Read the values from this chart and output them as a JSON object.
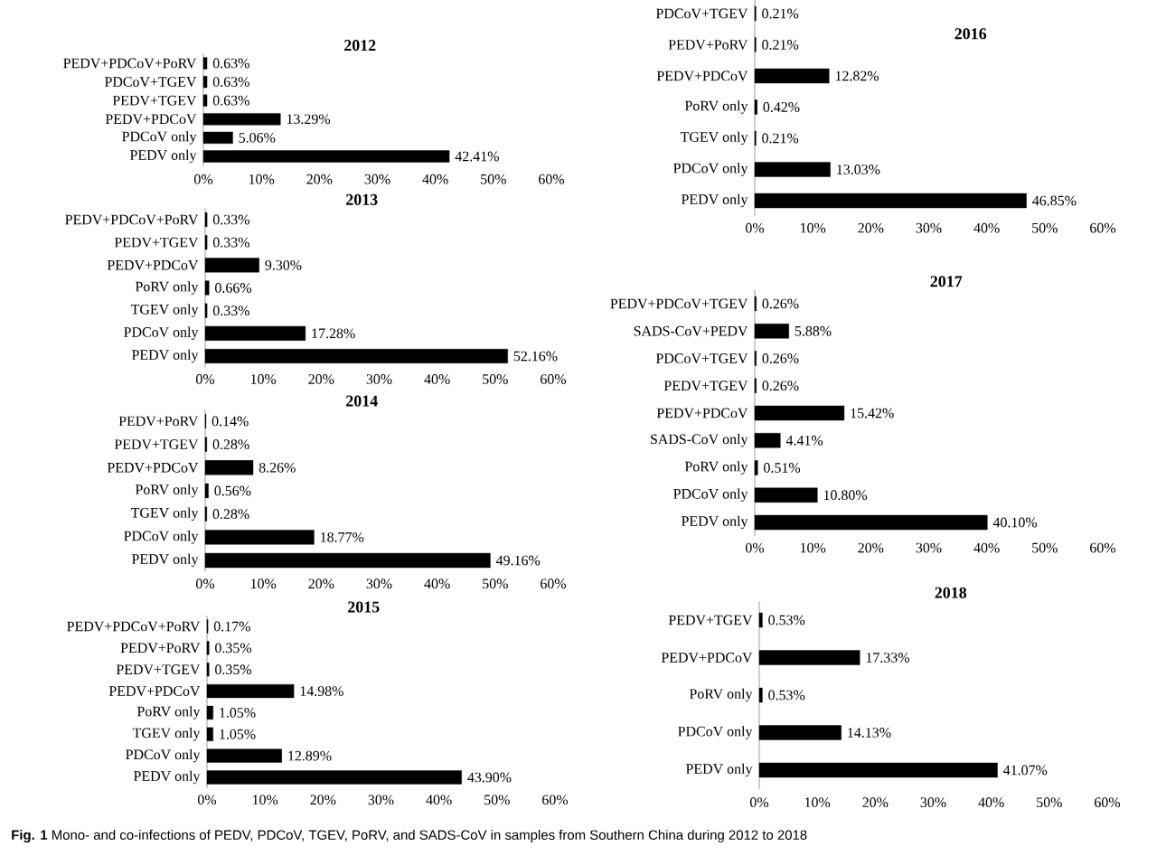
{
  "chart_data": [
    {
      "type": "bar",
      "orientation": "horizontal",
      "title": "2012",
      "color": "#000000",
      "categories": [
        "PEDV+PDCoV+PoRV",
        "PDCoV+TGEV",
        "PEDV+TGEV",
        "PEDV+PDCoV",
        "PDCoV only",
        "PEDV only"
      ],
      "values": [
        0.63,
        0.63,
        0.63,
        13.29,
        5.06,
        42.41
      ],
      "value_labels": [
        "0.63%",
        "0.63%",
        "0.63%",
        "13.29%",
        "5.06%",
        "42.41%"
      ],
      "xlim": [
        0,
        60
      ],
      "xticks": [
        {
          "value": 0,
          "label": "0%"
        },
        {
          "value": 10,
          "label": "10%"
        },
        {
          "value": 20,
          "label": "20%"
        },
        {
          "value": 30,
          "label": "30%"
        },
        {
          "value": 40,
          "label": "40%"
        },
        {
          "value": 50,
          "label": "50%"
        },
        {
          "value": 60,
          "label": "60%"
        }
      ],
      "annotations": [
        "**Fig. 1** Mono- and co-infections of PEDV, PDCoV, TGEV, PoRV, and SADS-CoV in samples from Southern China during 2012 to 2018"
      ]
    },
    {
      "type": "bar",
      "orientation": "horizontal",
      "title": "2013",
      "color": "#000000",
      "categories": [
        "PEDV+PDCoV+PoRV",
        "PEDV+TGEV",
        "PEDV+PDCoV",
        "PoRV only",
        "TGEV only",
        "PDCoV only",
        "PEDV only"
      ],
      "values": [
        0.33,
        0.33,
        9.3,
        0.66,
        0.33,
        17.28,
        52.16
      ],
      "value_labels": [
        "0.33%",
        "0.33%",
        "9.30%",
        "0.66%",
        "0.33%",
        "17.28%",
        "52.16%"
      ],
      "xlim": [
        0,
        60
      ],
      "xticks": [
        {
          "value": 0,
          "label": "0%"
        },
        {
          "value": 10,
          "label": "10%"
        },
        {
          "value": 20,
          "label": "20%"
        },
        {
          "value": 30,
          "label": "30%"
        },
        {
          "value": 40,
          "label": "40%"
        },
        {
          "value": 50,
          "label": "50%"
        },
        {
          "value": 60,
          "label": "60%"
        }
      ]
    },
    {
      "type": "bar",
      "orientation": "horizontal",
      "title": "2014",
      "color": "#000000",
      "categories": [
        "PEDV+PoRV",
        "PEDV+TGEV",
        "PEDV+PDCoV",
        "PoRV only",
        "TGEV only",
        "PDCoV only",
        "PEDV only"
      ],
      "values": [
        0.14,
        0.28,
        8.26,
        0.56,
        0.28,
        18.77,
        49.16
      ],
      "value_labels": [
        "0.14%",
        "0.28%",
        "8.26%",
        "0.56%",
        "0.28%",
        "18.77%",
        "49.16%"
      ],
      "xlim": [
        0,
        60
      ],
      "xticks": [
        {
          "value": 0,
          "label": "0%"
        },
        {
          "value": 10,
          "label": "10%"
        },
        {
          "value": 20,
          "label": "20%"
        },
        {
          "value": 30,
          "label": "30%"
        },
        {
          "value": 40,
          "label": "40%"
        },
        {
          "value": 50,
          "label": "50%"
        },
        {
          "value": 60,
          "label": "60%"
        }
      ]
    },
    {
      "type": "bar",
      "orientation": "horizontal",
      "title": "2015",
      "color": "#000000",
      "categories": [
        "PEDV+PDCoV+PoRV",
        "PEDV+PoRV",
        "PEDV+TGEV",
        "PEDV+PDCoV",
        "PoRV only",
        "TGEV only",
        "PDCoV only",
        "PEDV only"
      ],
      "values": [
        0.17,
        0.35,
        0.35,
        14.98,
        1.05,
        1.05,
        12.89,
        43.9
      ],
      "value_labels": [
        "0.17%",
        "0.35%",
        "0.35%",
        "14.98%",
        "1.05%",
        "1.05%",
        "12.89%",
        "43.90%"
      ],
      "xlim": [
        0,
        60
      ],
      "xticks": [
        {
          "value": 0,
          "label": "0%"
        },
        {
          "value": 10,
          "label": "10%"
        },
        {
          "value": 20,
          "label": "20%"
        },
        {
          "value": 30,
          "label": "30%"
        },
        {
          "value": 40,
          "label": "40%"
        },
        {
          "value": 50,
          "label": "50%"
        },
        {
          "value": 60,
          "label": "60%"
        }
      ]
    },
    {
      "type": "bar",
      "orientation": "horizontal",
      "title": "2016",
      "color": "#000000",
      "categories": [
        "PDCoV+TGEV",
        "PEDV+PoRV",
        "PEDV+PDCoV",
        "PoRV only",
        "TGEV only",
        "PDCoV only",
        "PEDV only"
      ],
      "values": [
        0.21,
        0.21,
        12.82,
        0.42,
        0.21,
        13.03,
        46.85
      ],
      "value_labels": [
        "0.21%",
        "0.21%",
        "12.82%",
        "0.42%",
        "0.21%",
        "13.03%",
        "46.85%"
      ],
      "xlim": [
        0,
        60
      ],
      "xticks": [
        {
          "value": 0,
          "label": "0%"
        },
        {
          "value": 10,
          "label": "10%"
        },
        {
          "value": 20,
          "label": "20%"
        },
        {
          "value": 30,
          "label": "30%"
        },
        {
          "value": 40,
          "label": "40%"
        },
        {
          "value": 50,
          "label": "50%"
        },
        {
          "value": 60,
          "label": "60%"
        }
      ]
    },
    {
      "type": "bar",
      "orientation": "horizontal",
      "title": "2017",
      "color": "#000000",
      "categories": [
        "PEDV+PDCoV+TGEV",
        "SADS-CoV+PEDV",
        "PDCoV+TGEV",
        "PEDV+TGEV",
        "PEDV+PDCoV",
        "SADS-CoV only",
        "PoRV only",
        "PDCoV only",
        "PEDV only"
      ],
      "values": [
        0.26,
        5.88,
        0.26,
        0.26,
        15.42,
        4.41,
        0.51,
        10.8,
        40.1
      ],
      "value_labels": [
        "0.26%",
        "5.88%",
        "0.26%",
        "0.26%",
        "15.42%",
        "4.41%",
        "0.51%",
        "10.80%",
        "40.10%"
      ],
      "xlim": [
        0,
        60
      ],
      "xticks": [
        {
          "value": 0,
          "label": "0%"
        },
        {
          "value": 10,
          "label": "10%"
        },
        {
          "value": 20,
          "label": "20%"
        },
        {
          "value": 30,
          "label": "30%"
        },
        {
          "value": 40,
          "label": "40%"
        },
        {
          "value": 50,
          "label": "50%"
        },
        {
          "value": 60,
          "label": "60%"
        }
      ]
    },
    {
      "type": "bar",
      "orientation": "horizontal",
      "title": "2018",
      "color": "#000000",
      "categories": [
        "PEDV+TGEV",
        "PEDV+PDCoV",
        "PoRV only",
        "PDCoV only",
        "PEDV only"
      ],
      "values": [
        0.53,
        17.33,
        0.53,
        14.13,
        41.07
      ],
      "value_labels": [
        "0.53%",
        "17.33%",
        "0.53%",
        "14.13%",
        "41.07%"
      ],
      "xlim": [
        0,
        60
      ],
      "xticks": [
        {
          "value": 0,
          "label": "0%"
        },
        {
          "value": 10,
          "label": "10%"
        },
        {
          "value": 20,
          "label": "20%"
        },
        {
          "value": 30,
          "label": "30%"
        },
        {
          "value": 40,
          "label": "40%"
        },
        {
          "value": 50,
          "label": "50%"
        },
        {
          "value": 60,
          "label": "60%"
        }
      ]
    }
  ]
}
